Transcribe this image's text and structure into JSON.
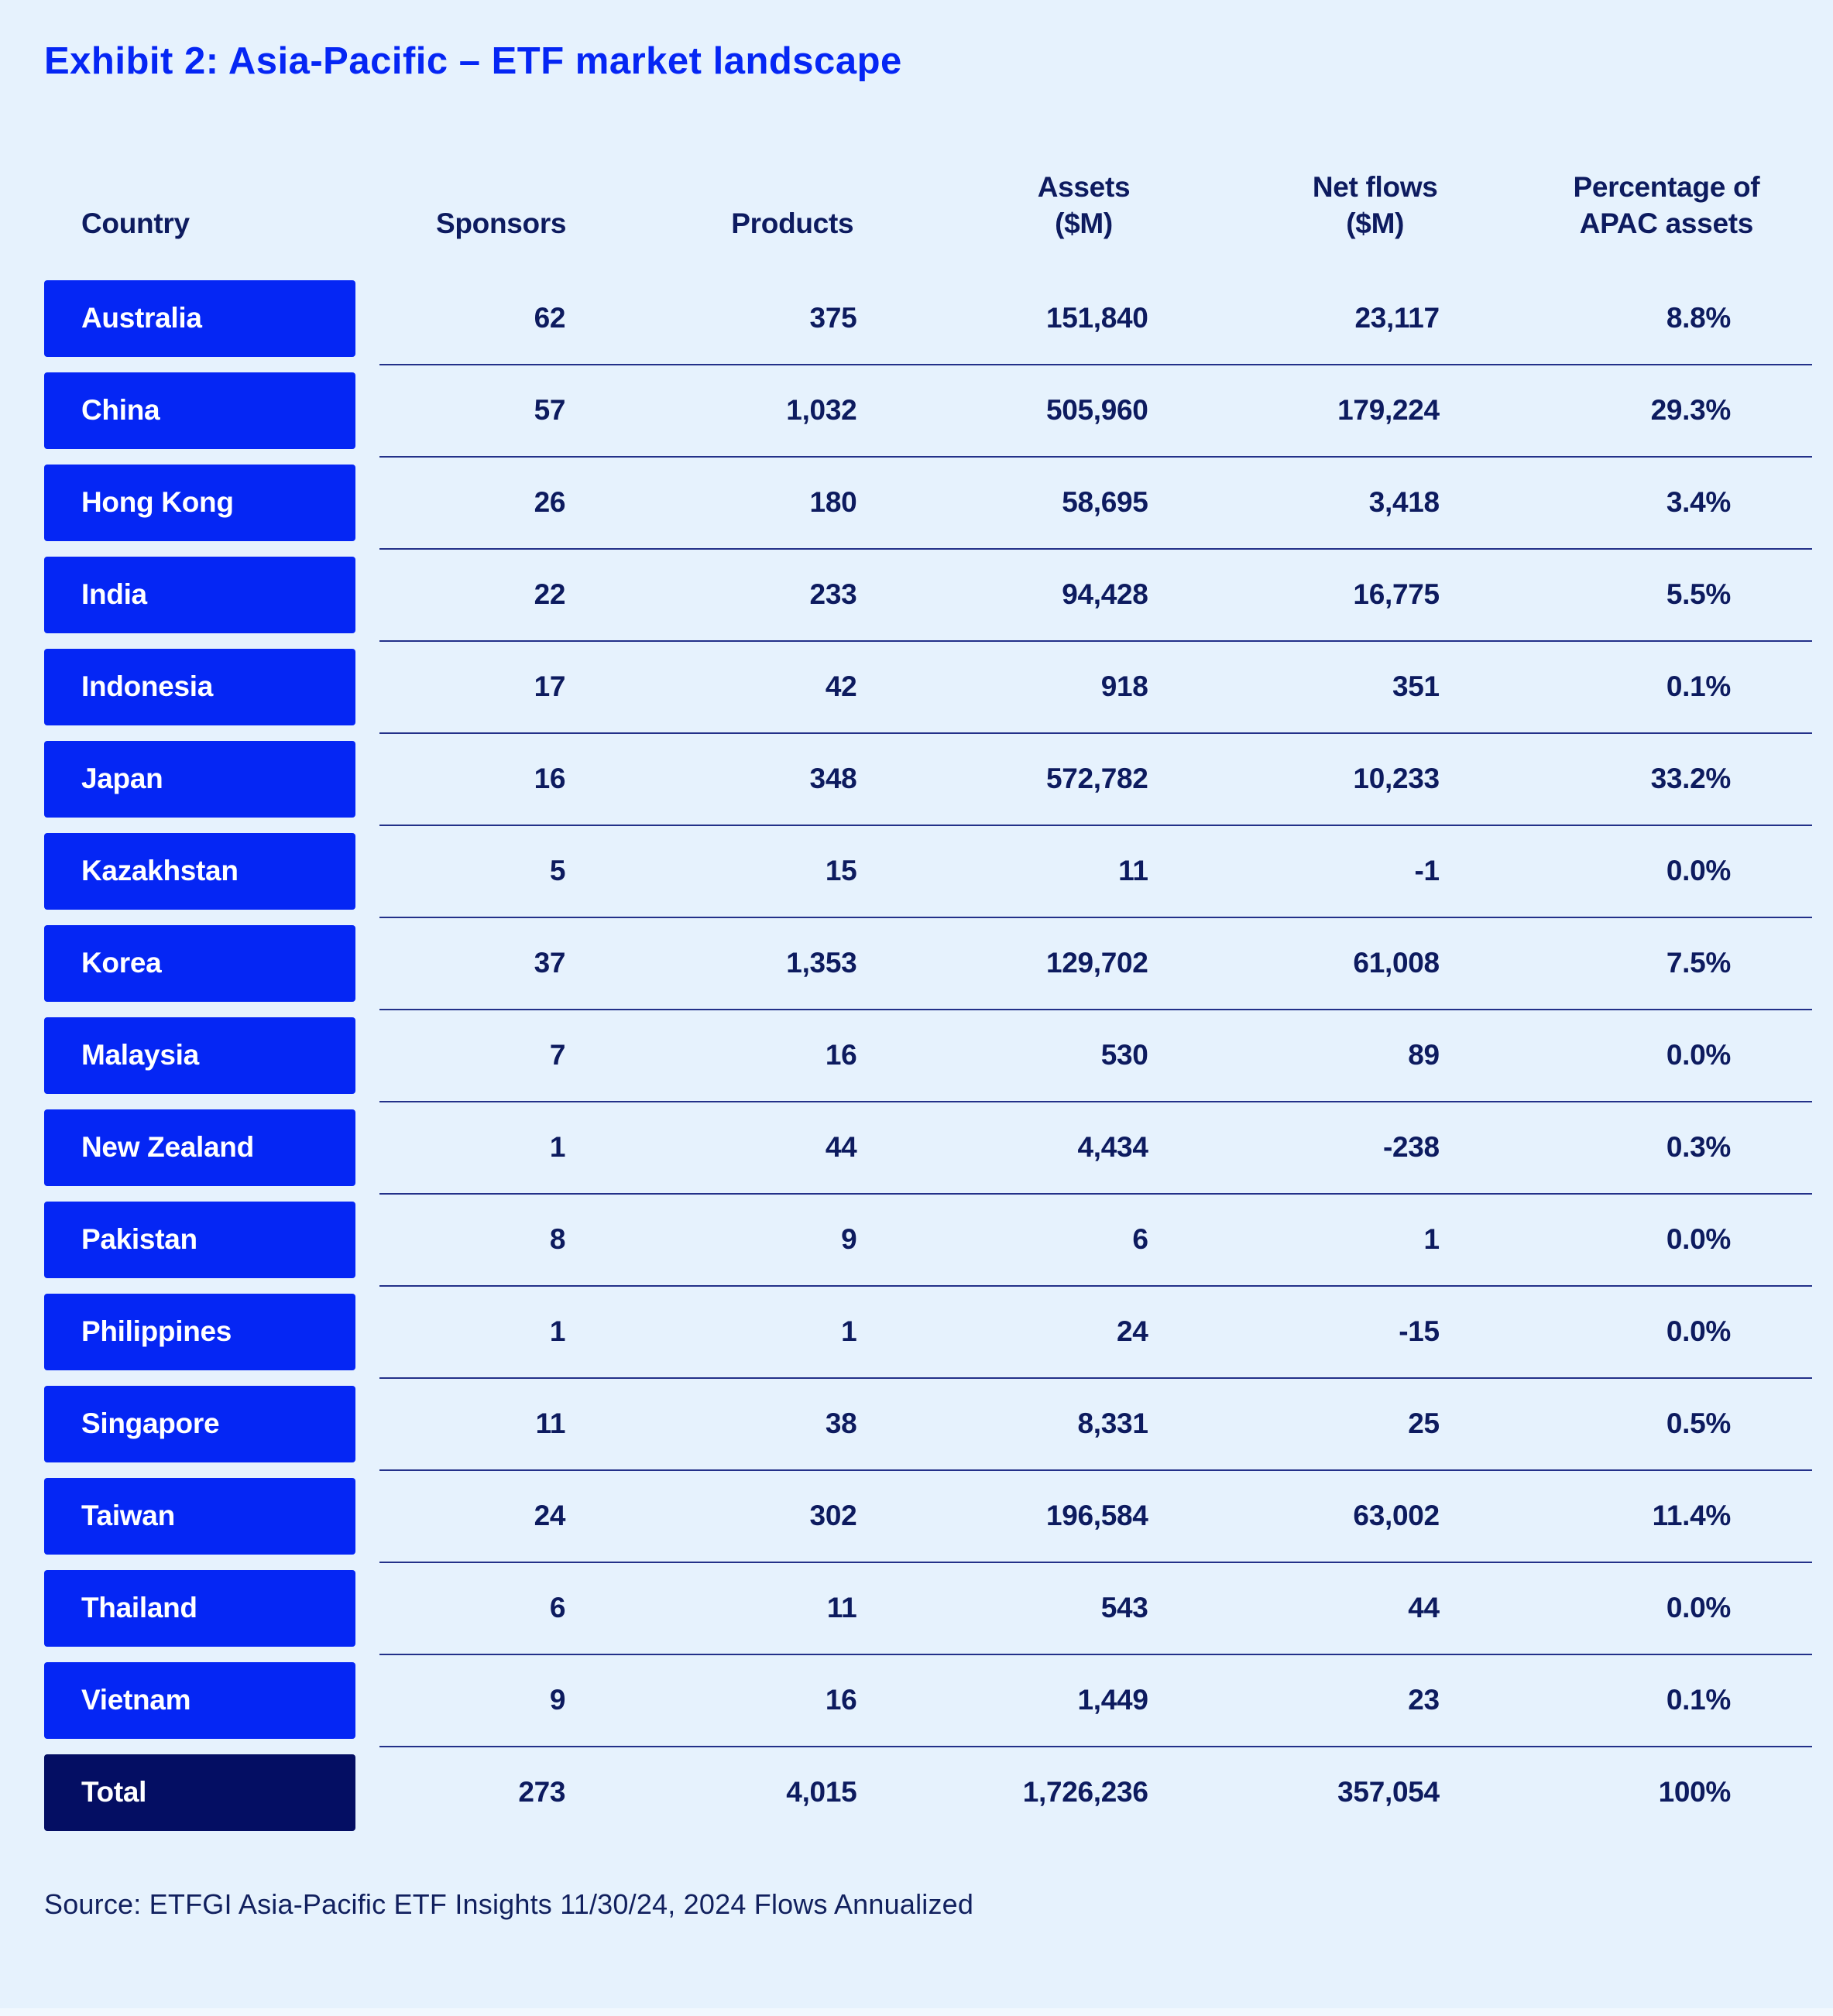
{
  "title": "Exhibit 2: Asia-Pacific – ETF market landscape",
  "source": "Source: ETFGI Asia-Pacific ETF Insights 11/30/24, 2024 Flows Annualized",
  "colors": {
    "background": "#E6F2FD",
    "accent_blue": "#0526F4",
    "total_pill_navy": "#040E63",
    "text_navy": "#0D1B5F",
    "divider_navy": "#233189",
    "pill_text": "#FFFFFF"
  },
  "table": {
    "columns": [
      {
        "lines": [
          "Country"
        ]
      },
      {
        "lines": [
          "Sponsors"
        ]
      },
      {
        "lines": [
          "Products"
        ]
      },
      {
        "lines": [
          "Assets",
          "($M)"
        ]
      },
      {
        "lines": [
          "Net flows",
          "($M)"
        ]
      },
      {
        "lines": [
          "Percentage of",
          "APAC assets"
        ]
      }
    ],
    "rows": [
      {
        "country": "Australia",
        "sponsors": "62",
        "products": "375",
        "assets": "151,840",
        "net_flows": "23,117",
        "pct": "8.8%"
      },
      {
        "country": "China",
        "sponsors": "57",
        "products": "1,032",
        "assets": "505,960",
        "net_flows": "179,224",
        "pct": "29.3%"
      },
      {
        "country": "Hong Kong",
        "sponsors": "26",
        "products": "180",
        "assets": "58,695",
        "net_flows": "3,418",
        "pct": "3.4%"
      },
      {
        "country": "India",
        "sponsors": "22",
        "products": "233",
        "assets": "94,428",
        "net_flows": "16,775",
        "pct": "5.5%"
      },
      {
        "country": "Indonesia",
        "sponsors": "17",
        "products": "42",
        "assets": "918",
        "net_flows": "351",
        "pct": "0.1%"
      },
      {
        "country": "Japan",
        "sponsors": "16",
        "products": "348",
        "assets": "572,782",
        "net_flows": "10,233",
        "pct": "33.2%"
      },
      {
        "country": "Kazakhstan",
        "sponsors": "5",
        "products": "15",
        "assets": "11",
        "net_flows": "-1",
        "pct": "0.0%"
      },
      {
        "country": "Korea",
        "sponsors": "37",
        "products": "1,353",
        "assets": "129,702",
        "net_flows": "61,008",
        "pct": "7.5%"
      },
      {
        "country": "Malaysia",
        "sponsors": "7",
        "products": "16",
        "assets": "530",
        "net_flows": "89",
        "pct": "0.0%"
      },
      {
        "country": "New Zealand",
        "sponsors": "1",
        "products": "44",
        "assets": "4,434",
        "net_flows": "-238",
        "pct": "0.3%"
      },
      {
        "country": "Pakistan",
        "sponsors": "8",
        "products": "9",
        "assets": "6",
        "net_flows": "1",
        "pct": "0.0%"
      },
      {
        "country": "Philippines",
        "sponsors": "1",
        "products": "1",
        "assets": "24",
        "net_flows": "-15",
        "pct": "0.0%"
      },
      {
        "country": "Singapore",
        "sponsors": "11",
        "products": "38",
        "assets": "8,331",
        "net_flows": "25",
        "pct": "0.5%"
      },
      {
        "country": "Taiwan",
        "sponsors": "24",
        "products": "302",
        "assets": "196,584",
        "net_flows": "63,002",
        "pct": "11.4%"
      },
      {
        "country": "Thailand",
        "sponsors": "6",
        "products": "11",
        "assets": "543",
        "net_flows": "44",
        "pct": "0.0%"
      },
      {
        "country": "Vietnam",
        "sponsors": "9",
        "products": "16",
        "assets": "1,449",
        "net_flows": "23",
        "pct": "0.1%"
      }
    ],
    "total": {
      "country": "Total",
      "sponsors": "273",
      "products": "4,015",
      "assets": "1,726,236",
      "net_flows": "357,054",
      "pct": "100%"
    }
  },
  "chart_data": {
    "type": "table",
    "title": "Exhibit 2: Asia-Pacific – ETF market landscape",
    "columns": [
      "Country",
      "Sponsors",
      "Products",
      "Assets ($M)",
      "Net flows ($M)",
      "Percentage of APAC assets"
    ],
    "rows": [
      [
        "Australia",
        62,
        375,
        151840,
        23117,
        "8.8%"
      ],
      [
        "China",
        57,
        1032,
        505960,
        179224,
        "29.3%"
      ],
      [
        "Hong Kong",
        26,
        180,
        58695,
        3418,
        "3.4%"
      ],
      [
        "India",
        22,
        233,
        94428,
        16775,
        "5.5%"
      ],
      [
        "Indonesia",
        17,
        42,
        918,
        351,
        "0.1%"
      ],
      [
        "Japan",
        16,
        348,
        572782,
        10233,
        "33.2%"
      ],
      [
        "Kazakhstan",
        5,
        15,
        11,
        -1,
        "0.0%"
      ],
      [
        "Korea",
        37,
        1353,
        129702,
        61008,
        "7.5%"
      ],
      [
        "Malaysia",
        7,
        16,
        530,
        89,
        "0.0%"
      ],
      [
        "New Zealand",
        1,
        44,
        4434,
        -238,
        "0.3%"
      ],
      [
        "Pakistan",
        8,
        9,
        6,
        1,
        "0.0%"
      ],
      [
        "Philippines",
        1,
        1,
        24,
        -15,
        "0.0%"
      ],
      [
        "Singapore",
        11,
        38,
        8331,
        25,
        "0.5%"
      ],
      [
        "Taiwan",
        24,
        302,
        196584,
        63002,
        "11.4%"
      ],
      [
        "Thailand",
        6,
        11,
        543,
        44,
        "0.0%"
      ],
      [
        "Vietnam",
        9,
        16,
        1449,
        23,
        "0.1%"
      ]
    ],
    "total_row": [
      "Total",
      273,
      4015,
      1726236,
      357054,
      "100%"
    ],
    "source": "Source: ETFGI Asia-Pacific ETF Insights 11/30/24, 2024 Flows Annualized"
  }
}
